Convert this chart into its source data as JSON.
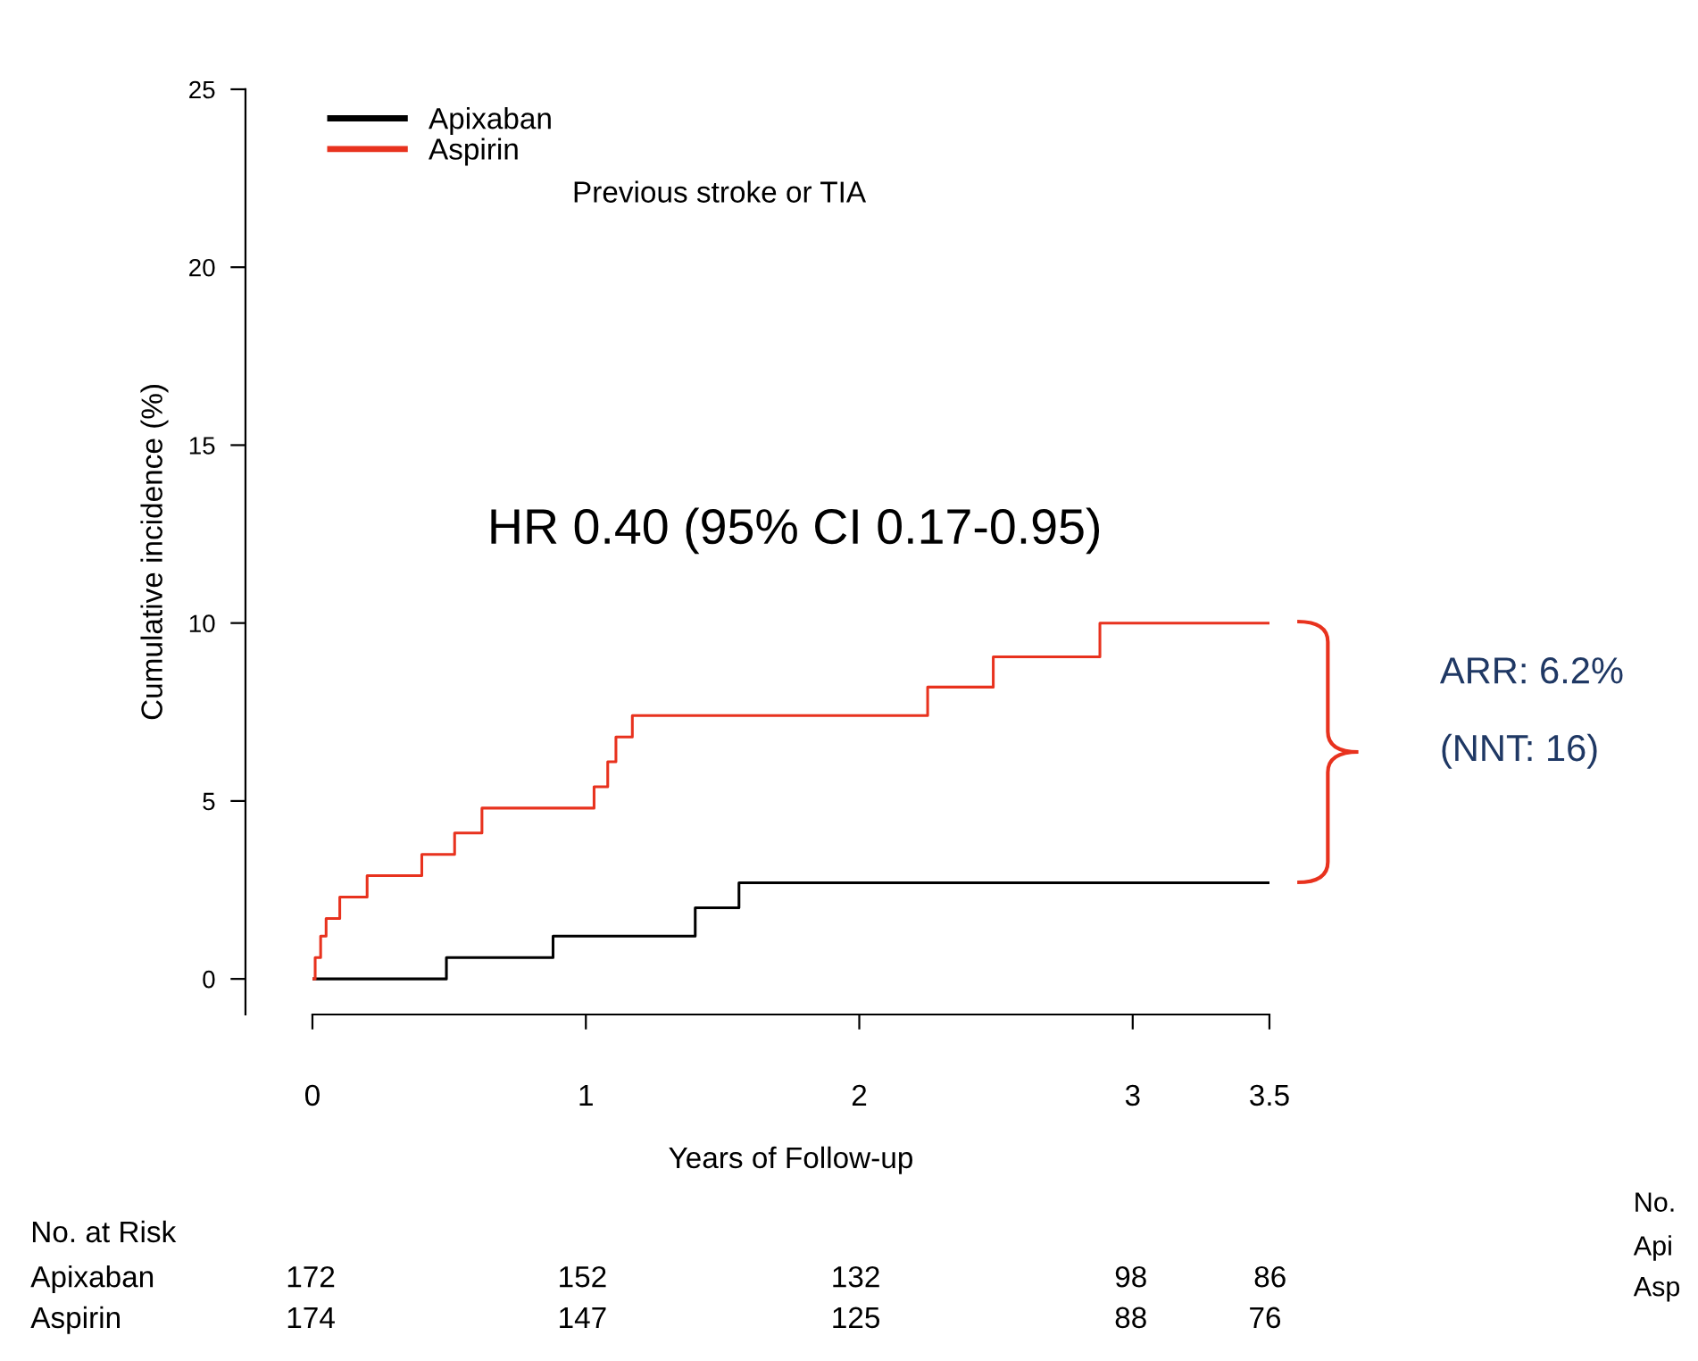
{
  "chart_data": {
    "type": "step",
    "xlabel": "Years of Follow-up",
    "ylabel": "Cumulative incidence (%)",
    "series": [
      {
        "name": "Apixaban",
        "color": "#000000",
        "x": [
          0,
          0.49,
          0.88,
          1.4,
          1.56,
          3.5
        ],
        "values": [
          0,
          0.6,
          1.2,
          2.0,
          2.7,
          2.7
        ]
      },
      {
        "name": "Aspirin",
        "color": "#e8321e",
        "x": [
          0,
          0.01,
          0.03,
          0.05,
          0.1,
          0.2,
          0.4,
          0.52,
          0.62,
          1.03,
          1.08,
          1.11,
          1.17,
          2.25,
          2.49,
          2.88,
          3.5
        ],
        "values": [
          0,
          0.6,
          1.2,
          1.7,
          2.3,
          2.9,
          3.5,
          4.1,
          4.8,
          5.4,
          6.1,
          6.8,
          7.4,
          8.2,
          9.05,
          10.0,
          10.0
        ]
      }
    ],
    "legend": "top left",
    "xlim": [
      0,
      3.5
    ],
    "ylim": [
      -1,
      25
    ],
    "xticks": [
      0,
      1,
      2,
      3,
      3.5
    ],
    "yticks": [
      0,
      5,
      10,
      15,
      20,
      25
    ],
    "annotations": [
      "Previous stroke or TIA",
      "HR 0.40 (95% CI 0.17-0.95)",
      "ARR: 6.2%",
      "(NNT: 16)",
      "No. at Risk",
      "Apixaban",
      "172",
      "152",
      "132",
      "98",
      "86",
      "Aspirin",
      "174",
      "147",
      "125",
      "88",
      "76",
      "No.",
      "Api",
      "Asp"
    ]
  }
}
